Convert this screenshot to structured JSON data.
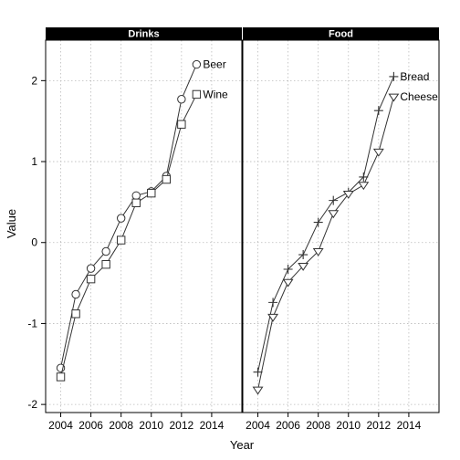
{
  "chart_data": {
    "type": "line",
    "xlabel": "Year",
    "ylabel": "Value",
    "xlim": [
      2003,
      2016
    ],
    "ylim": [
      -2.1,
      2.5
    ],
    "x_ticks": [
      2004,
      2006,
      2008,
      2010,
      2012,
      2014
    ],
    "y_ticks": [
      -2,
      -1,
      0,
      1,
      2
    ],
    "grid": true,
    "colors": {
      "strip": "#000000",
      "line": "#333333",
      "grid": "#bbbbbb"
    },
    "panels": [
      {
        "title": "Drinks",
        "series": [
          {
            "name": "Beer",
            "marker": "circle",
            "x": [
              2004,
              2005,
              2006,
              2007,
              2008,
              2009,
              2010,
              2011,
              2012,
              2013
            ],
            "y": [
              -1.55,
              -0.64,
              -0.32,
              -0.11,
              0.3,
              0.58,
              0.63,
              0.82,
              1.77,
              2.2
            ]
          },
          {
            "name": "Wine",
            "marker": "square",
            "x": [
              2004,
              2005,
              2006,
              2007,
              2008,
              2009,
              2010,
              2011,
              2012,
              2013
            ],
            "y": [
              -1.66,
              -0.88,
              -0.45,
              -0.27,
              0.03,
              0.49,
              0.61,
              0.78,
              1.46,
              1.83
            ]
          }
        ]
      },
      {
        "title": "Food",
        "series": [
          {
            "name": "Bread",
            "marker": "plus",
            "x": [
              2004,
              2005,
              2006,
              2007,
              2008,
              2009,
              2010,
              2011,
              2012,
              2013
            ],
            "y": [
              -1.6,
              -0.74,
              -0.33,
              -0.15,
              0.25,
              0.52,
              0.62,
              0.81,
              1.63,
              2.05
            ]
          },
          {
            "name": "Cheese",
            "marker": "triangle-down",
            "x": [
              2004,
              2005,
              2006,
              2007,
              2008,
              2009,
              2010,
              2011,
              2012,
              2013
            ],
            "y": [
              -1.82,
              -0.92,
              -0.49,
              -0.29,
              -0.11,
              0.36,
              0.6,
              0.71,
              1.12,
              1.8
            ]
          }
        ]
      }
    ]
  }
}
